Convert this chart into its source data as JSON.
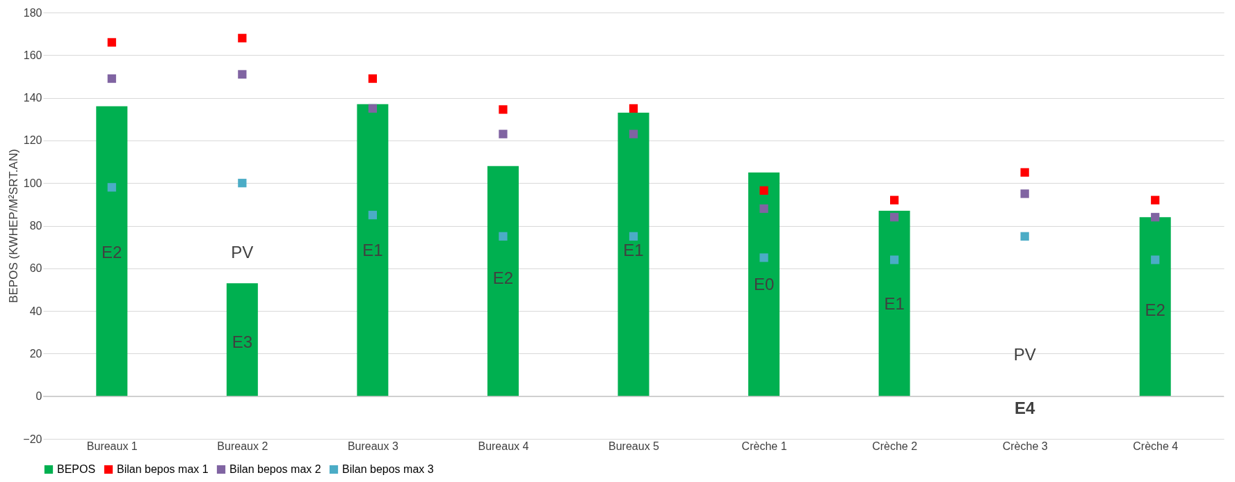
{
  "chart_data": {
    "type": "bar",
    "ylabel": "BEPOS (KWHEP/M²SRT.AN)",
    "categories": [
      "Bureaux 1",
      "Bureaux 2",
      "Bureaux 3",
      "Bureaux 4",
      "Bureaux 5",
      "Crèche 1",
      "Crèche 2",
      "Crèche 3",
      "Crèche 4"
    ],
    "series": [
      {
        "name": "BEPOS",
        "color": "#00b050",
        "values": [
          136,
          53,
          137,
          108,
          133,
          105,
          87,
          0,
          84
        ]
      },
      {
        "name": "Bilan bepos max 1",
        "color": "#ff0000",
        "type": "scatter",
        "values": [
          166,
          168,
          149,
          134.5,
          135,
          96.5,
          92,
          105,
          92
        ]
      },
      {
        "name": "Bilan bepos max 2",
        "color": "#8064a2",
        "type": "scatter",
        "values": [
          149,
          151,
          135,
          123,
          123,
          88,
          84,
          95,
          84
        ]
      },
      {
        "name": "Bilan bepos max 3",
        "color": "#4bacc6",
        "type": "scatter",
        "values": [
          98,
          100,
          85,
          75,
          75,
          65,
          64,
          75,
          64
        ]
      }
    ],
    "ylim": [
      -20,
      180
    ],
    "yticks": [
      -20,
      0,
      20,
      40,
      60,
      80,
      100,
      120,
      140,
      160,
      180
    ],
    "grid": "y",
    "legend": "bottom",
    "marker": "square",
    "annotations": [
      "E2",
      "PV",
      "E3",
      "E1",
      "E2",
      "E1",
      "E0",
      "E1",
      "PV",
      "E4",
      "E2"
    ]
  }
}
